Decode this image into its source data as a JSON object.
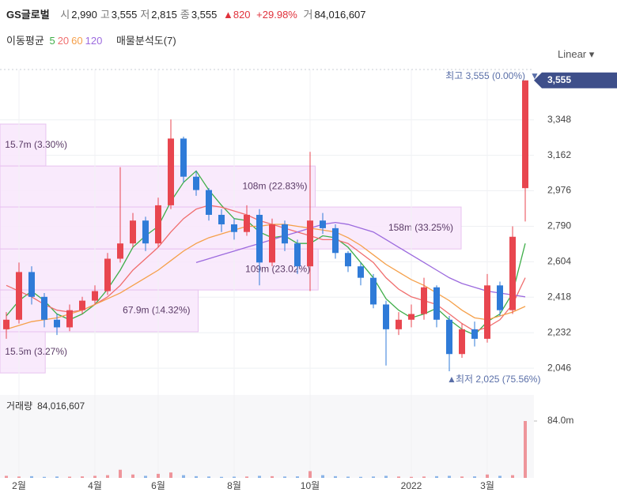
{
  "header": {
    "name": "GS글로벌",
    "items": [
      {
        "label": "시",
        "value": "2,990"
      },
      {
        "label": "고",
        "value": "3,555"
      },
      {
        "label": "저",
        "value": "2,815"
      },
      {
        "label": "종",
        "value": "3,555"
      }
    ],
    "change": "▲820",
    "change_pct": "+29.98%",
    "volume_label": "거",
    "volume": "84,016,607"
  },
  "chart_data": {
    "type": "candlestick",
    "scale": "Linear",
    "categories": [
      null,
      "2월",
      null,
      null,
      null,
      null,
      null,
      "4월",
      null,
      null,
      null,
      null,
      "6월",
      null,
      null,
      null,
      null,
      null,
      "8월",
      null,
      null,
      null,
      null,
      null,
      "10월",
      null,
      null,
      null,
      null,
      null,
      null,
      null,
      "2022",
      null,
      null,
      null,
      null,
      null,
      "3월",
      null,
      null,
      null
    ],
    "open": [
      2250,
      2300,
      2550,
      2420,
      2300,
      2260,
      2350,
      2400,
      2450,
      2620,
      2700,
      2820,
      2700,
      2900,
      3250,
      3050,
      2980,
      2850,
      2800,
      2760,
      2850,
      2600,
      2800,
      2700,
      2580,
      2820,
      2780,
      2650,
      2580,
      2520,
      2380,
      2250,
      2300,
      2330,
      2470,
      2300,
      2120,
      2250,
      2200,
      2480,
      2350,
      2990
    ],
    "high": [
      2340,
      2600,
      2580,
      2440,
      2330,
      2380,
      2420,
      2480,
      2650,
      3100,
      2860,
      2840,
      2940,
      3350,
      3260,
      3080,
      2990,
      2880,
      2830,
      2900,
      2880,
      2830,
      2820,
      2720,
      3180,
      2860,
      2800,
      2660,
      2600,
      2540,
      2400,
      2340,
      2380,
      2520,
      2480,
      2320,
      2280,
      2290,
      2540,
      2500,
      2790,
      3555
    ],
    "low": [
      2200,
      2280,
      2380,
      2260,
      2220,
      2240,
      2330,
      2380,
      2430,
      2600,
      2680,
      2660,
      2680,
      2880,
      3020,
      2950,
      2820,
      2760,
      2720,
      2740,
      2480,
      2580,
      2660,
      2540,
      2450,
      2750,
      2620,
      2550,
      2480,
      2360,
      2060,
      2220,
      2260,
      2300,
      2260,
      2030,
      2100,
      2160,
      2180,
      2320,
      2330,
      2815
    ],
    "close": [
      2300,
      2550,
      2420,
      2300,
      2260,
      2350,
      2400,
      2450,
      2620,
      2700,
      2820,
      2700,
      2900,
      3250,
      3050,
      2980,
      2850,
      2800,
      2760,
      2850,
      2600,
      2800,
      2700,
      2580,
      2820,
      2780,
      2650,
      2580,
      2520,
      2380,
      2250,
      2300,
      2330,
      2470,
      2300,
      2120,
      2250,
      2200,
      2480,
      2350,
      2735,
      3555
    ],
    "up_color": "#e8464f",
    "down_color": "#2f7bd8",
    "ylim": [
      1947,
      3612
    ],
    "yticks": [
      {
        "value": 2046,
        "label": "2,046"
      },
      {
        "value": 2232,
        "label": "2,232"
      },
      {
        "value": 2418,
        "label": "2,418"
      },
      {
        "value": 2604,
        "label": "2,604"
      },
      {
        "value": 2790,
        "label": "2,790"
      },
      {
        "value": 2976,
        "label": "2,976"
      },
      {
        "value": 3162,
        "label": "3,162"
      },
      {
        "value": 3348,
        "label": "3,348"
      }
    ],
    "grid": true,
    "last_price": {
      "value": 3555,
      "label": "3,555"
    },
    "high_note": "최고 3,555 (0.00%)",
    "low_note": "최저 2,025 (75.56%)",
    "indicator_title": "이동평균",
    "series": [
      {
        "name": "5",
        "color": "#3fae49",
        "values": [
          2320,
          2400,
          2450,
          2400,
          2330,
          2300,
          2330,
          2380,
          2460,
          2560,
          2680,
          2740,
          2790,
          2920,
          3020,
          3080,
          2980,
          2900,
          2830,
          2820,
          2760,
          2730,
          2740,
          2700,
          2700,
          2740,
          2730,
          2680,
          2600,
          2520,
          2410,
          2350,
          2310,
          2330,
          2360,
          2300,
          2250,
          2220,
          2290,
          2330,
          2440,
          2700
        ]
      },
      {
        "name": "20",
        "color": "#f06e6e",
        "values": [
          2480,
          2450,
          2420,
          2380,
          2350,
          2340,
          2350,
          2380,
          2420,
          2480,
          2560,
          2620,
          2680,
          2760,
          2830,
          2880,
          2900,
          2890,
          2870,
          2850,
          2820,
          2800,
          2780,
          2760,
          2740,
          2720,
          2720,
          2700,
          2650,
          2600,
          2520,
          2460,
          2420,
          2400,
          2380,
          2330,
          2280,
          2240,
          2260,
          2300,
          2380,
          2520
        ]
      },
      {
        "name": "60",
        "color": "#f5a04a",
        "values": [
          2250,
          2270,
          2290,
          2300,
          2310,
          2330,
          2350,
          2380,
          2410,
          2440,
          2480,
          2520,
          2560,
          2610,
          2660,
          2700,
          2730,
          2750,
          2770,
          2790,
          2790,
          2800,
          2800,
          2790,
          2780,
          2770,
          2760,
          2730,
          2690,
          2640,
          2590,
          2550,
          2510,
          2480,
          2440,
          2400,
          2350,
          2310,
          2300,
          2320,
          2340,
          2370
        ]
      },
      {
        "name": "120",
        "color": "#9c6ade",
        "values": [
          null,
          null,
          null,
          null,
          null,
          null,
          null,
          null,
          null,
          null,
          null,
          null,
          null,
          null,
          null,
          2600,
          2620,
          2640,
          2660,
          2680,
          2700,
          2720,
          2740,
          2760,
          2780,
          2800,
          2810,
          2800,
          2780,
          2760,
          2720,
          2680,
          2640,
          2600,
          2560,
          2520,
          2490,
          2470,
          2450,
          2440,
          2430,
          2420
        ]
      }
    ],
    "profile_title": "매물분석도(7)",
    "profile": [
      {
        "low": 3106,
        "high": 3326,
        "volume": 15700000,
        "label": "15.7m (3.30%)"
      },
      {
        "low": 2891,
        "high": 3106,
        "volume": 108000000,
        "label": "108m (22.83%)"
      },
      {
        "low": 2671,
        "high": 2891,
        "volume": 158000000,
        "label": "158m (33.25%)"
      },
      {
        "low": 2456,
        "high": 2671,
        "volume": 109000000,
        "label": "109m (23.02%)"
      },
      {
        "low": 2237,
        "high": 2456,
        "volume": 67900000,
        "label": "67.9m (14.32%)"
      },
      {
        "low": 2021,
        "high": 2237,
        "volume": 15500000,
        "label": "15.5m (3.27%)"
      }
    ],
    "volume": {
      "title": "거래량",
      "label": "84,016,607",
      "values": [
        3000000,
        2000000,
        2500000,
        1500000,
        2000000,
        1800000,
        2200000,
        3000000,
        4000000,
        12000000,
        5000000,
        3000000,
        6000000,
        8000000,
        4000000,
        2500000,
        2000000,
        1500000,
        1800000,
        2000000,
        3000000,
        2500000,
        2000000,
        2200000,
        10000000,
        4000000,
        2500000,
        1800000,
        1500000,
        2000000,
        3000000,
        2000000,
        1500000,
        2000000,
        2500000,
        3000000,
        2000000,
        2200000,
        5000000,
        3000000,
        4000000,
        84016607
      ],
      "ylim": [
        0,
        122500000
      ],
      "yticks": [
        {
          "value": 84000000,
          "label": "84.0m"
        }
      ]
    }
  }
}
